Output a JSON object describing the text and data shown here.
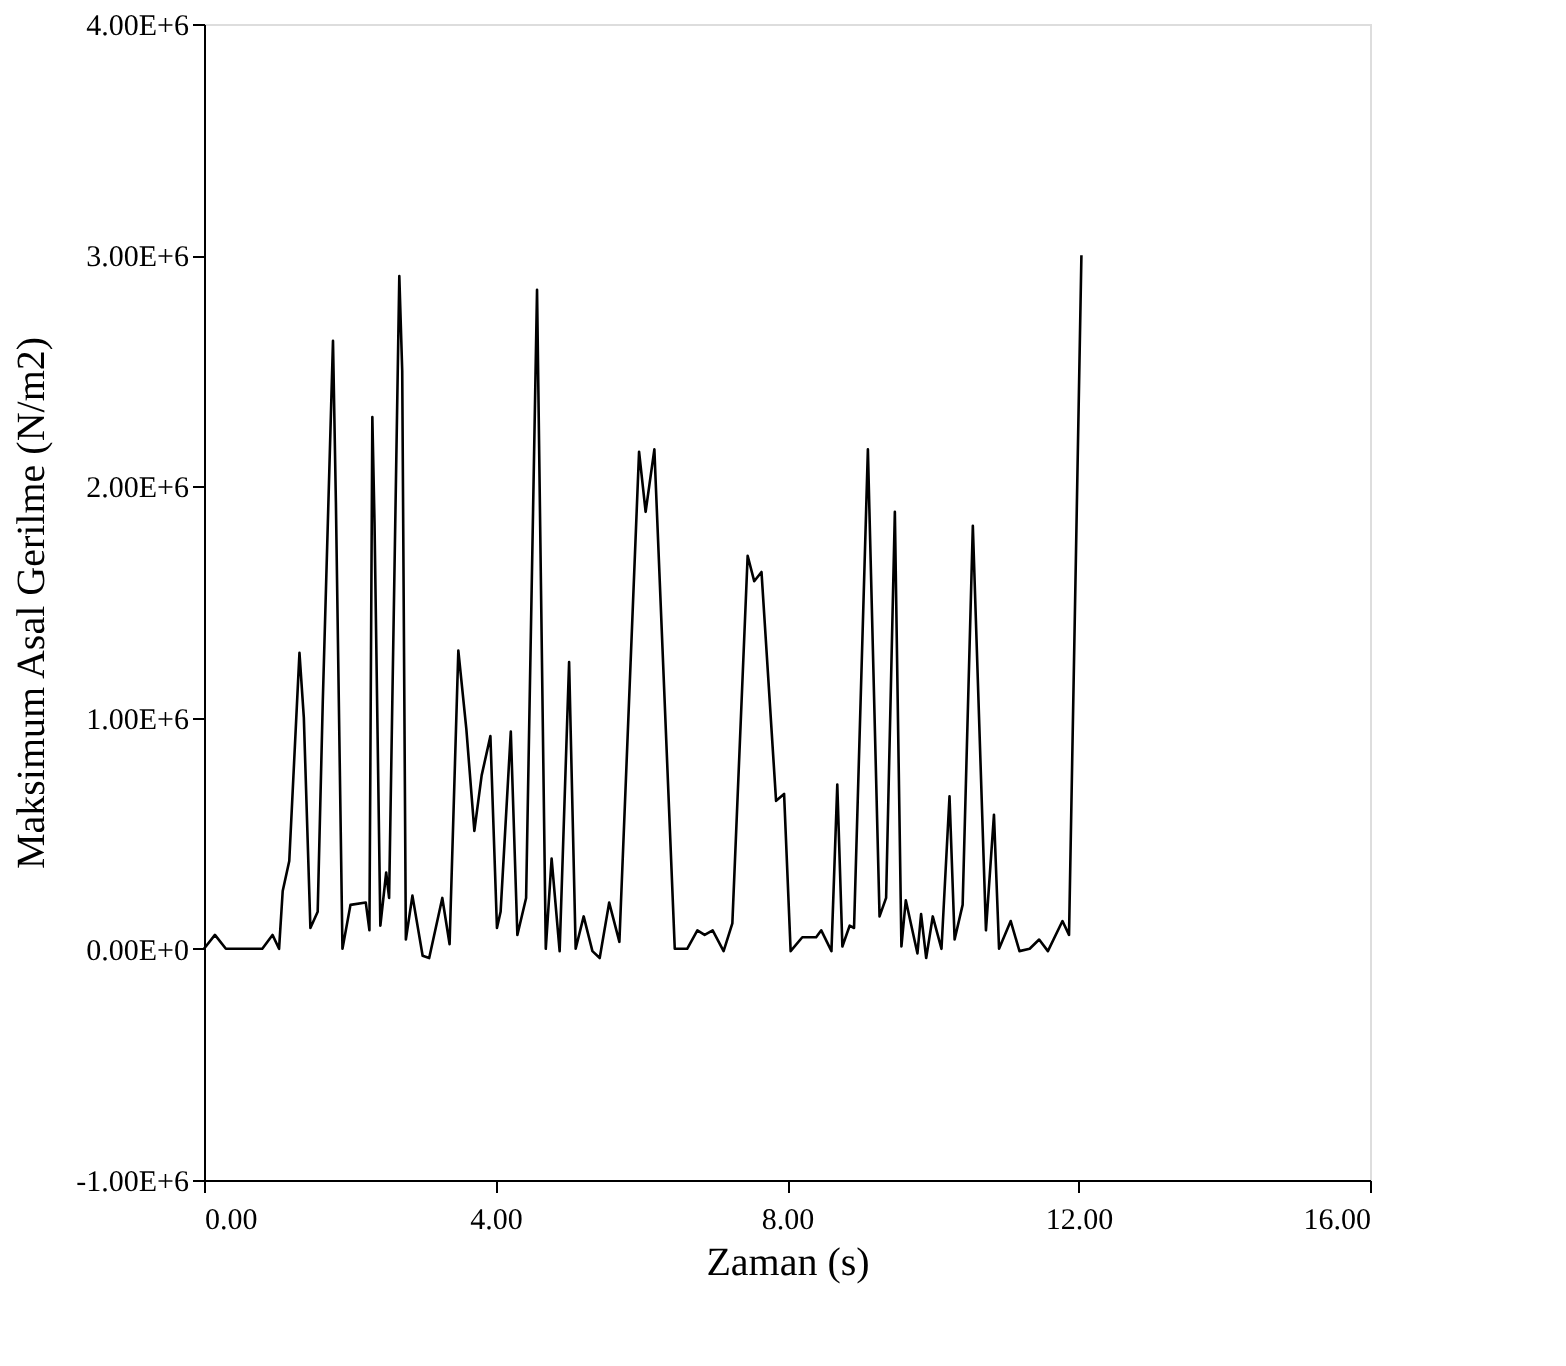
{
  "chart_data": {
    "type": "line",
    "xlabel": "Zaman (s)",
    "ylabel": "Maksimum Asal Gerilme (N/m2)",
    "xlim": [
      0,
      16
    ],
    "ylim": [
      -1000000,
      4000000
    ],
    "xticks": [
      {
        "value": 0,
        "label": "0.00"
      },
      {
        "value": 4,
        "label": "4.00"
      },
      {
        "value": 8,
        "label": "8.00"
      },
      {
        "value": 12,
        "label": "12.00"
      },
      {
        "value": 16,
        "label": "16.00"
      }
    ],
    "yticks": [
      {
        "value": -1000000,
        "label": "-1.00E+6"
      },
      {
        "value": 0,
        "label": "0.00E+0"
      },
      {
        "value": 1000000,
        "label": "1.00E+6"
      },
      {
        "value": 2000000,
        "label": "2.00E+6"
      },
      {
        "value": 3000000,
        "label": "3.00E+6"
      },
      {
        "value": 4000000,
        "label": "4.00E+6"
      }
    ],
    "grid": false,
    "marker": "none",
    "line_style": "solid",
    "series": [
      {
        "color": "#000000",
        "x": [
          0,
          0.15,
          0.3,
          0.8,
          0.94,
          1.03,
          1.08,
          1.17,
          1.31,
          1.37,
          1.46,
          1.56,
          1.63,
          1.77,
          1.81,
          1.9,
          2.01,
          2.22,
          2.27,
          2.31,
          2.34,
          2.42,
          2.5,
          2.54,
          2.68,
          2.72,
          2.77,
          2.86,
          3.0,
          3.09,
          3.27,
          3.37,
          3.49,
          3.6,
          3.71,
          3.81,
          3.93,
          4.02,
          4.07,
          4.21,
          4.3,
          4.42,
          4.57,
          4.69,
          4.77,
          4.88,
          5.01,
          5.1,
          5.21,
          5.33,
          5.43,
          5.56,
          5.7,
          5.97,
          6.06,
          6.18,
          6.46,
          6.63,
          6.77,
          6.87,
          6.98,
          7.13,
          7.25,
          7.46,
          7.55,
          7.65,
          7.85,
          7.96,
          8.05,
          8.21,
          8.4,
          8.47,
          8.61,
          8.69,
          8.76,
          8.86,
          8.92,
          9.11,
          9.27,
          9.36,
          9.48,
          9.57,
          9.63,
          9.79,
          9.84,
          9.91,
          10.0,
          10.12,
          10.23,
          10.3,
          10.41,
          10.55,
          10.73,
          10.84,
          10.91,
          11.07,
          11.19,
          11.33,
          11.46,
          11.58,
          11.78,
          11.87,
          12.04
        ],
        "values": [
          0,
          60000,
          0,
          0,
          60000,
          0,
          250000,
          380000,
          1280000,
          1000000,
          90000,
          160000,
          1070000,
          2630000,
          1930000,
          0,
          190000,
          200000,
          80000,
          2300000,
          1840000,
          100000,
          330000,
          220000,
          2910000,
          2500000,
          40000,
          230000,
          -30000,
          -40000,
          220000,
          20000,
          1290000,
          950000,
          510000,
          750000,
          920000,
          90000,
          160000,
          940000,
          60000,
          220000,
          2850000,
          0,
          390000,
          -10000,
          1240000,
          0,
          140000,
          -10000,
          -40000,
          200000,
          30000,
          2150000,
          1890000,
          2160000,
          0,
          0,
          80000,
          60000,
          80000,
          -10000,
          110000,
          1700000,
          1590000,
          1630000,
          640000,
          670000,
          -10000,
          50000,
          50000,
          80000,
          -10000,
          710000,
          10000,
          100000,
          90000,
          2160000,
          140000,
          220000,
          1890000,
          10000,
          210000,
          -20000,
          150000,
          -40000,
          140000,
          0,
          660000,
          40000,
          190000,
          1830000,
          80000,
          580000,
          0,
          120000,
          -10000,
          0,
          40000,
          -10000,
          120000,
          60000,
          3000000
        ]
      }
    ]
  }
}
